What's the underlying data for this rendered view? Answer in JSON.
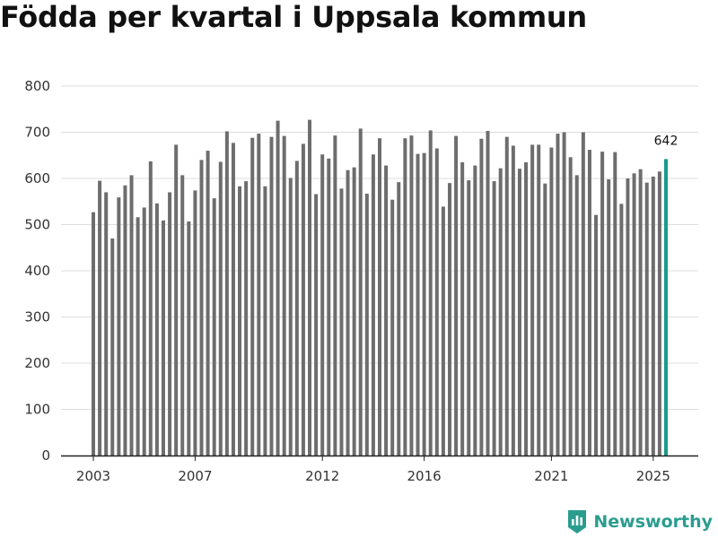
{
  "chart_data": {
    "type": "bar",
    "title": "Födda per kvartal i Uppsala kommun",
    "xlabel": "",
    "ylabel": "",
    "ylim": [
      0,
      800
    ],
    "yticks": [
      0,
      100,
      200,
      300,
      400,
      500,
      600,
      700,
      800
    ],
    "xtick_labels": [
      {
        "label": "2003",
        "index": 0
      },
      {
        "label": "2007",
        "index": 16
      },
      {
        "label": "2012",
        "index": 36
      },
      {
        "label": "2016",
        "index": 52
      },
      {
        "label": "2021",
        "index": 72
      },
      {
        "label": "2025",
        "index": 88
      }
    ],
    "start_year": 2003,
    "start_quarter": 1,
    "values": [
      527,
      595,
      570,
      470,
      559,
      585,
      607,
      516,
      537,
      637,
      546,
      509,
      570,
      673,
      607,
      507,
      574,
      640,
      660,
      557,
      636,
      702,
      677,
      583,
      594,
      688,
      697,
      583,
      690,
      725,
      692,
      601,
      638,
      675,
      727,
      566,
      652,
      643,
      693,
      578,
      618,
      624,
      708,
      567,
      652,
      687,
      628,
      554,
      592,
      687,
      693,
      653,
      655,
      704,
      665,
      539,
      590,
      692,
      635,
      596,
      628,
      686,
      703,
      594,
      622,
      690,
      671,
      621,
      635,
      673,
      673,
      589,
      667,
      697,
      700,
      646,
      607,
      700,
      662,
      521,
      658,
      598,
      657,
      545,
      600,
      611,
      620,
      591,
      604,
      615,
      642
    ],
    "highlight_index": 90,
    "highlight_label": "642",
    "colors": {
      "bar": "#6d6d6d",
      "highlight": "#1a9a8a",
      "grid": "#dddddd",
      "axis": "#222222"
    }
  },
  "branding": {
    "logo_text": "Newsworthy",
    "icon": "newsworthy-logo-icon",
    "color": "#2a9d8f"
  }
}
